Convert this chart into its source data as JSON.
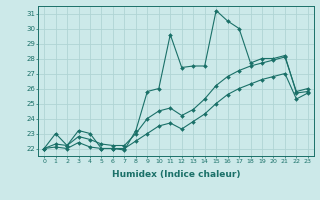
{
  "xlabel": "Humidex (Indice chaleur)",
  "xlim": [
    -0.5,
    23.5
  ],
  "ylim": [
    21.5,
    31.5
  ],
  "xticks": [
    0,
    1,
    2,
    3,
    4,
    5,
    6,
    7,
    8,
    9,
    10,
    11,
    12,
    13,
    14,
    15,
    16,
    17,
    18,
    19,
    20,
    21,
    22,
    23
  ],
  "yticks": [
    22,
    23,
    24,
    25,
    26,
    27,
    28,
    29,
    30,
    31
  ],
  "bg_color": "#cce9e9",
  "line_color": "#1a7068",
  "grid_color": "#b0d4d4",
  "line1_y": [
    22.0,
    23.0,
    22.2,
    23.2,
    23.0,
    22.0,
    22.0,
    21.9,
    23.2,
    25.8,
    26.0,
    29.6,
    27.4,
    27.5,
    27.5,
    31.2,
    30.5,
    30.0,
    27.7,
    28.0,
    28.0,
    28.2,
    25.7,
    25.8
  ],
  "line2_y": [
    22.0,
    22.3,
    22.2,
    22.8,
    22.6,
    22.3,
    22.2,
    22.2,
    23.0,
    24.0,
    24.5,
    24.7,
    24.2,
    24.6,
    25.3,
    26.2,
    26.8,
    27.2,
    27.5,
    27.7,
    27.9,
    28.1,
    25.8,
    26.0
  ],
  "line3_y": [
    22.0,
    22.1,
    22.0,
    22.4,
    22.1,
    22.0,
    22.0,
    22.0,
    22.5,
    23.0,
    23.5,
    23.7,
    23.3,
    23.8,
    24.3,
    25.0,
    25.6,
    26.0,
    26.3,
    26.6,
    26.8,
    27.0,
    25.3,
    25.7
  ]
}
